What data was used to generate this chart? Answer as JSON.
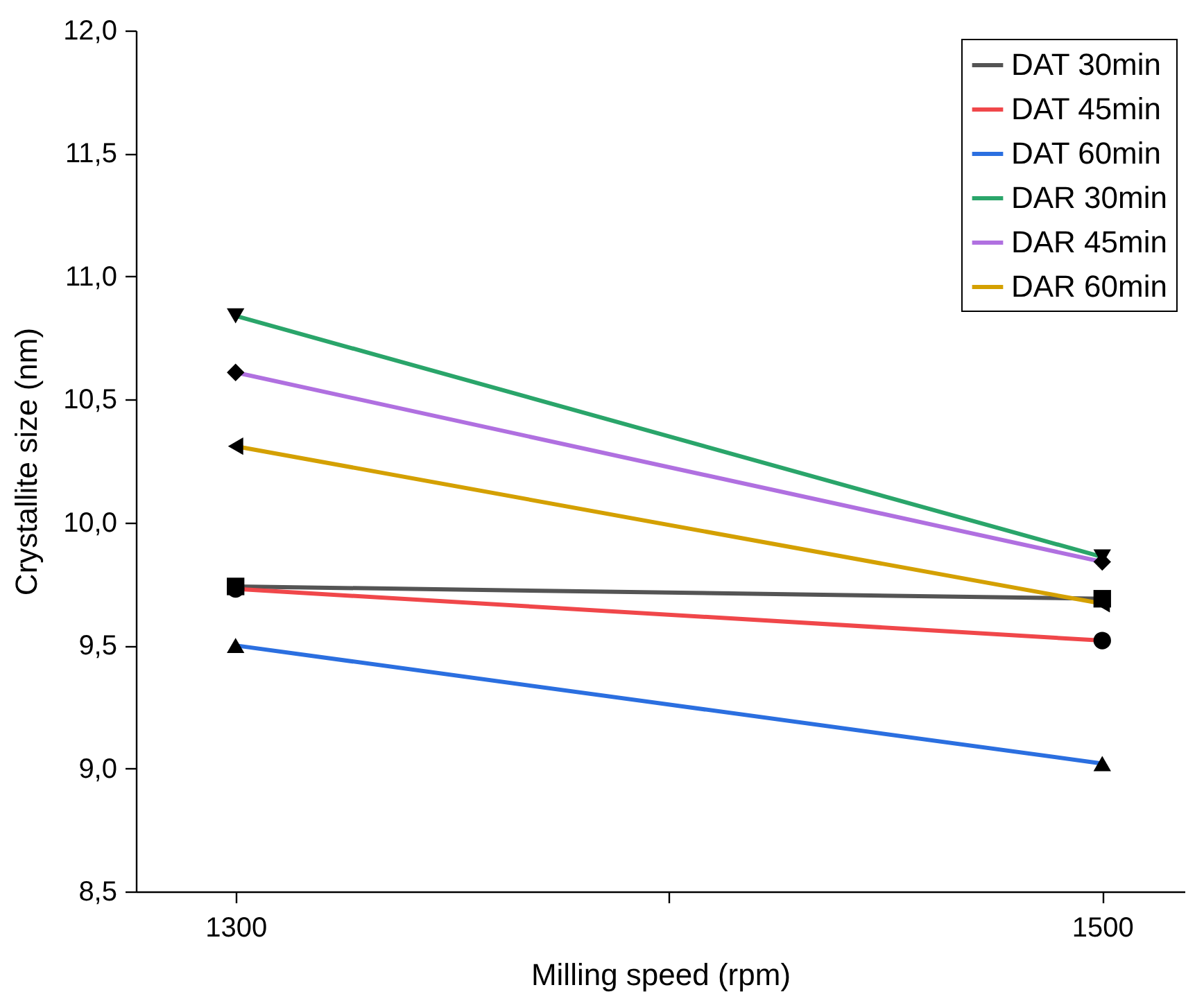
{
  "chart_data": {
    "type": "line",
    "xlabel": "Milling speed (rpm)",
    "ylabel": "Crystallite size (nm)",
    "x": [
      1300,
      1500
    ],
    "xlim": [
      1277,
      1519
    ],
    "xticks": [
      1300,
      {
        "value": 1400,
        "label": null
      },
      1500
    ],
    "ylim": [
      8.5,
      12.0
    ],
    "yticks": [
      {
        "value": 8.5,
        "label": "8,5"
      },
      {
        "value": 9.0,
        "label": "9,0"
      },
      {
        "value": 9.5,
        "label": "9,5"
      },
      {
        "value": 10.0,
        "label": "10,0"
      },
      {
        "value": 10.5,
        "label": "10,5"
      },
      {
        "value": 11.0,
        "label": "11,0"
      },
      {
        "value": 11.5,
        "label": "11,5"
      },
      {
        "value": 12.0,
        "label": "12,0"
      }
    ],
    "grid": false,
    "legend": "top right",
    "line_style": "solid",
    "series": [
      {
        "name": "DAT 30min",
        "color": "#545454",
        "marker": "square",
        "values": [
          9.74,
          9.69
        ]
      },
      {
        "name": "DAT 45min",
        "color": "#f0474a",
        "marker": "circle",
        "values": [
          9.73,
          9.52
        ]
      },
      {
        "name": "DAT 60min",
        "color": "#2b6fe0",
        "marker": "triangle",
        "values": [
          9.5,
          9.02
        ]
      },
      {
        "name": "DAR 30min",
        "color": "#2aa56a",
        "marker": "triangle-down",
        "values": [
          10.84,
          9.86
        ]
      },
      {
        "name": "DAR 45min",
        "color": "#b070e0",
        "marker": "diamond",
        "values": [
          10.61,
          9.84
        ]
      },
      {
        "name": "DAR 60min",
        "color": "#d4a000",
        "marker": "triangle-left",
        "values": [
          10.31,
          9.67
        ]
      }
    ]
  }
}
